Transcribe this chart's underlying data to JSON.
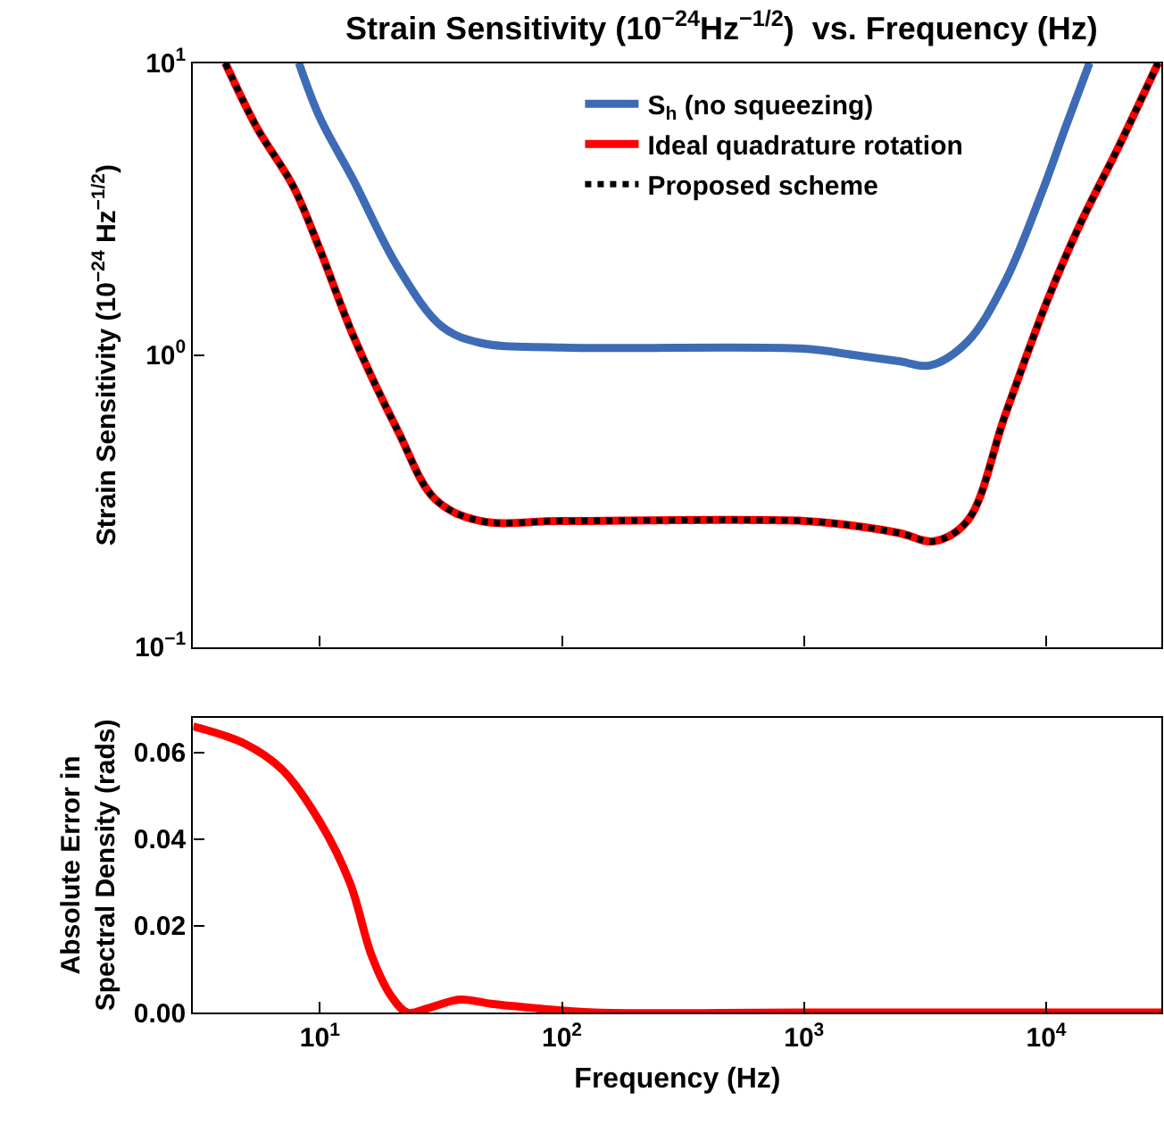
{
  "chart_data": [
    {
      "type": "line",
      "title": "Strain Sensitivity (10$^{−24}$Hz$^{−1/2}$)  vs. Frequency (Hz)",
      "ylabel": "Strain Sensitivity (10$^{−24}$ Hz$^{−1/2}$)",
      "log": "xy",
      "xlim": [
        3,
        30000
      ],
      "xticks": [
        {
          "value": 10,
          "label": "10$^{1}$"
        },
        {
          "value": 100,
          "label": "10$^{2}$"
        },
        {
          "value": 1000,
          "label": "10$^{3}$"
        },
        {
          "value": 10000,
          "label": "10$^{4}$"
        }
      ],
      "ylim": [
        0.1,
        10
      ],
      "yticks": [
        {
          "value": 0.1,
          "label": "10$^{−1}$"
        },
        {
          "value": 1,
          "label": "10$^{0}$"
        },
        {
          "value": 10,
          "label": "10$^{1}$"
        }
      ],
      "tick_labels": "y",
      "legend": "top",
      "series": [
        {
          "name": "S$_{h}$ (no squeezing)",
          "color": "#3e6bb5",
          "line_style": "solid",
          "x": [
            8.2,
            10,
            13.7,
            21,
            32,
            46,
            100,
            1000,
            1600,
            2500,
            3300,
            4730,
            6760,
            9600,
            12000,
            15100
          ],
          "values": [
            10,
            6.5,
            4.0,
            2.0,
            1.25,
            1.1,
            1.06,
            1.05,
            1.0,
            0.95,
            0.92,
            1.11,
            1.78,
            3.6,
            6.0,
            10
          ]
        },
        {
          "name": "Ideal quadrature rotation",
          "color": "#ff0000",
          "line_style": "solid",
          "x": [
            4.07,
            5.5,
            7.74,
            10,
            13.7,
            21,
            30,
            46,
            100,
            1000,
            1600,
            2500,
            3430,
            4730,
            6760,
            10000,
            13800,
            20000,
            29000
          ],
          "values": [
            10,
            6.0,
            3.8,
            2.3,
            1.17,
            0.55,
            0.32,
            0.27,
            0.27,
            0.27,
            0.26,
            0.245,
            0.23,
            0.27,
            0.62,
            1.5,
            2.8,
            5.2,
            10
          ]
        },
        {
          "name": "Proposed scheme",
          "color": "#000000",
          "line_style": "dotted",
          "x": [
            4.07,
            5.5,
            7.74,
            10,
            13.7,
            21,
            30,
            46,
            100,
            1000,
            1600,
            2500,
            3430,
            4730,
            6760,
            10000,
            13800,
            20000,
            29000
          ],
          "values": [
            10,
            6.0,
            3.8,
            2.3,
            1.17,
            0.55,
            0.32,
            0.27,
            0.27,
            0.27,
            0.26,
            0.245,
            0.23,
            0.27,
            0.62,
            1.5,
            2.8,
            5.2,
            10
          ]
        }
      ]
    },
    {
      "type": "line",
      "xlabel": "Frequency (Hz)",
      "ylabel": "Absolute Error in\nSpectral Density (rads)",
      "log": "x",
      "xlim": [
        3,
        30000
      ],
      "xticks": [
        {
          "value": 10,
          "label": "10$^{1}$"
        },
        {
          "value": 100,
          "label": "10$^{2}$"
        },
        {
          "value": 1000,
          "label": "10$^{3}$"
        },
        {
          "value": 10000,
          "label": "10$^{4}$"
        }
      ],
      "ylim": [
        0,
        0.068
      ],
      "yticks": [
        {
          "value": 0,
          "label": "0.00"
        },
        {
          "value": 0.02,
          "label": "0.02"
        },
        {
          "value": 0.04,
          "label": "0.04"
        },
        {
          "value": 0.06,
          "label": "0.06"
        }
      ],
      "legend": false,
      "series": [
        {
          "color": "#ff0000",
          "line_style": "solid",
          "x": [
            3,
            4.9,
            7.0,
            10,
            13.3,
            16.4,
            19.6,
            23,
            28,
            38,
            51,
            78,
            137,
            1000,
            30000
          ],
          "values": [
            0.066,
            0.062,
            0.056,
            0.044,
            0.03,
            0.013,
            0.004,
            0.0,
            0.001,
            0.003,
            0.002,
            0.001,
            0.0,
            0.0,
            0.0
          ]
        }
      ]
    }
  ]
}
